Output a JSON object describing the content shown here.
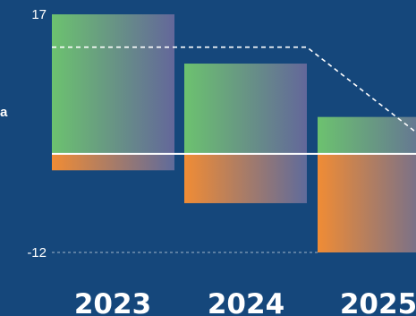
{
  "chart_data": {
    "type": "bar",
    "title": "",
    "xlabel": "",
    "ylabel": "",
    "categories": [
      "2023",
      "2024",
      "2025"
    ],
    "series": [
      {
        "values": [
          17,
          11,
          4.5
        ]
      },
      {
        "values": [
          -2,
          -6,
          -12
        ]
      }
    ],
    "y_ticks": [
      17,
      -12
    ],
    "ylim": [
      -12,
      17
    ],
    "grid": false,
    "legend": "none",
    "partial_label": "a",
    "colors": {
      "background": "#15477b",
      "positive_start": "#6cc26f",
      "positive_end": "#63679a",
      "negative_start": "#f08c35",
      "negative_end": "#5f6b9b",
      "zero_line": "#ffffff",
      "text": "#ffffff"
    }
  }
}
